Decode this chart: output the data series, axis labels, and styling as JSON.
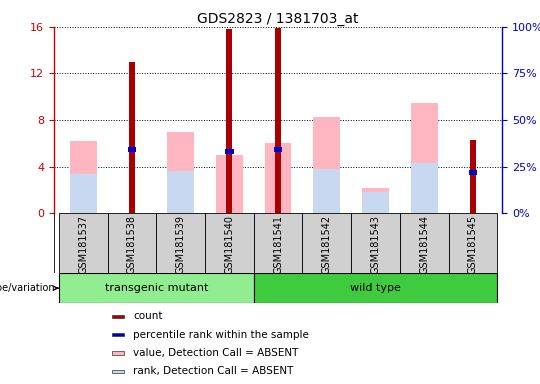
{
  "title": "GDS2823 / 1381703_at",
  "samples": [
    "GSM181537",
    "GSM181538",
    "GSM181539",
    "GSM181540",
    "GSM181541",
    "GSM181542",
    "GSM181543",
    "GSM181544",
    "GSM181545"
  ],
  "count_values": [
    0,
    13.0,
    0,
    15.8,
    15.9,
    0,
    0,
    0,
    6.3
  ],
  "percentile_values": [
    0,
    5.5,
    0,
    5.3,
    5.5,
    0,
    0,
    0,
    3.5
  ],
  "value_absent": [
    6.2,
    0,
    7.0,
    5.0,
    6.0,
    8.3,
    2.2,
    9.5,
    0
  ],
  "rank_absent": [
    3.4,
    0,
    3.6,
    0,
    0,
    3.8,
    1.8,
    4.3,
    0
  ],
  "groups": [
    "transgenic mutant",
    "transgenic mutant",
    "transgenic mutant",
    "transgenic mutant",
    "wild type",
    "wild type",
    "wild type",
    "wild type",
    "wild type"
  ],
  "group_colors": {
    "transgenic mutant": "#90EE90",
    "wild type": "#3ECC3E"
  },
  "ylim_left": [
    0,
    16
  ],
  "ylim_right": [
    0,
    100
  ],
  "yticks_left": [
    0,
    4,
    8,
    12,
    16
  ],
  "yticks_right": [
    0,
    25,
    50,
    75,
    100
  ],
  "count_color": "#AA0000",
  "percentile_color": "#0000CC",
  "value_absent_color": "#FFB6C1",
  "rank_absent_color": "#C8D8F0",
  "left_tick_color": "#CC0000",
  "right_tick_color": "#0000CC",
  "sample_box_color": "#D0D0D0",
  "legend_items": [
    {
      "label": "count",
      "color": "#AA0000"
    },
    {
      "label": "percentile rank within the sample",
      "color": "#0000CC"
    },
    {
      "label": "value, Detection Call = ABSENT",
      "color": "#FFB6C1"
    },
    {
      "label": "rank, Detection Call = ABSENT",
      "color": "#C8D8F0"
    }
  ]
}
